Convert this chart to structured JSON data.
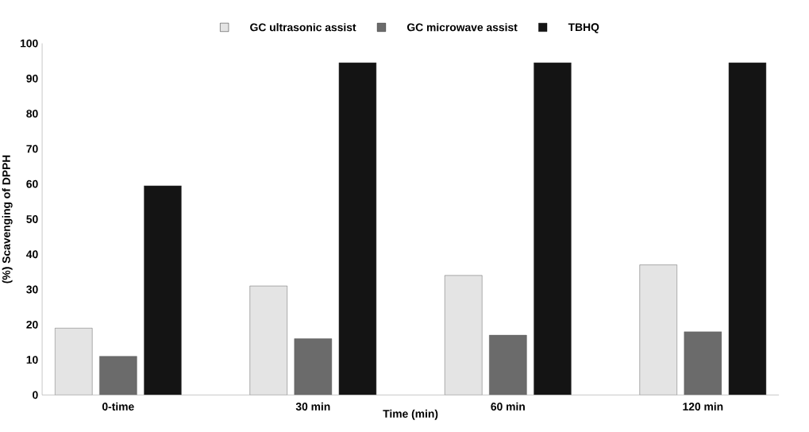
{
  "chart_data": {
    "type": "bar",
    "xlabel": "Time (min)",
    "ylabel": "(%) Scavenging of DPPH",
    "categories": [
      "0-time",
      "30 min",
      "60 min",
      "120 min"
    ],
    "series": [
      {
        "name": "GC ultrasonic assist",
        "color": "#e4e4e4",
        "values": [
          19,
          31,
          34,
          37
        ]
      },
      {
        "name": "GC microwave assist",
        "color": "#6b6b6b",
        "values": [
          11,
          16,
          17,
          18
        ]
      },
      {
        "name": "TBHQ",
        "color": "#141414",
        "values": [
          59.5,
          94.5,
          94.5,
          94.5
        ]
      }
    ],
    "ylim": [
      0,
      100
    ],
    "yticks": [
      0,
      10,
      20,
      30,
      40,
      50,
      60,
      70,
      80,
      90,
      100
    ],
    "grid": false,
    "legend": "top"
  }
}
